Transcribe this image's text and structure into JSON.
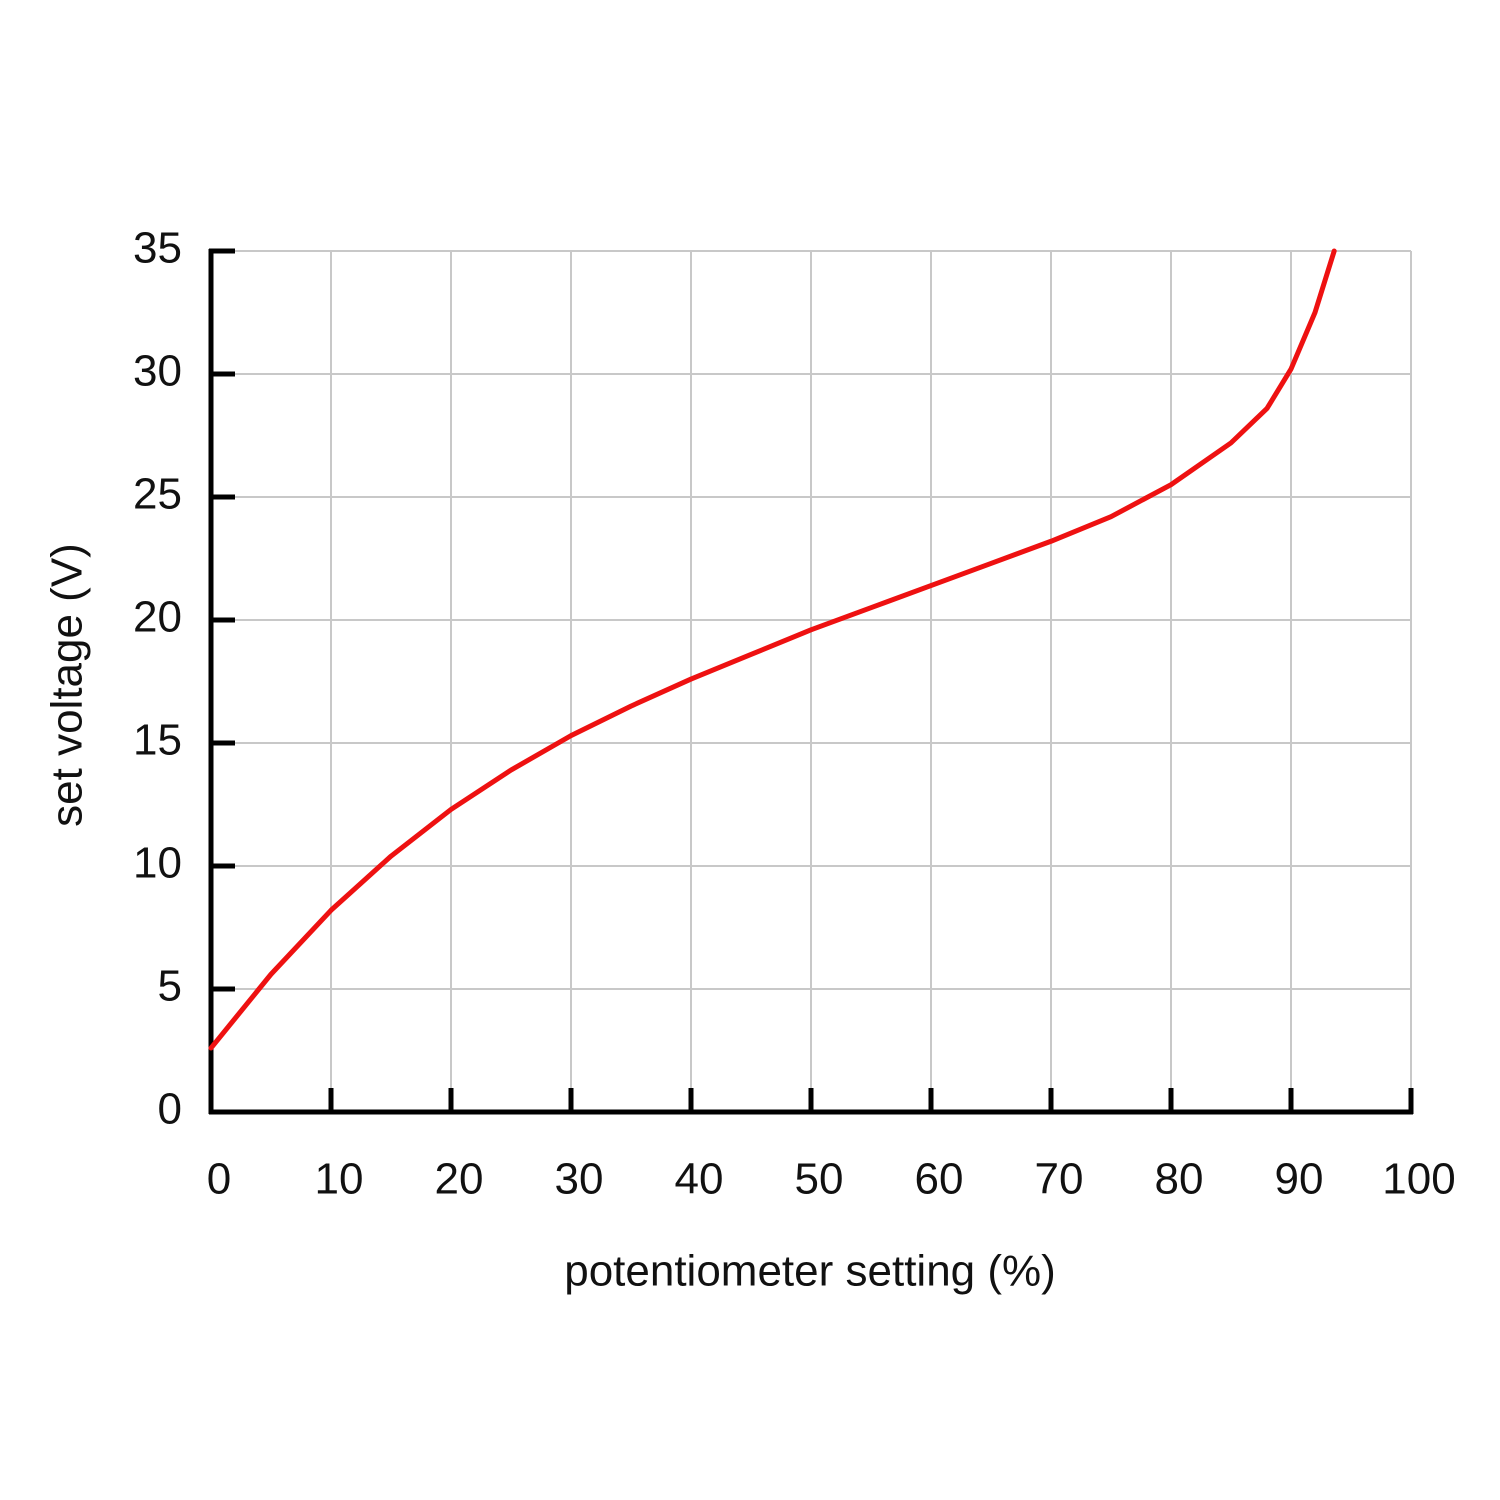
{
  "chart_data": {
    "type": "line",
    "xlabel": "potentiometer setting (%)",
    "ylabel": "set voltage (V)",
    "x": [
      0,
      5,
      10,
      15,
      20,
      25,
      30,
      35,
      40,
      45,
      50,
      55,
      60,
      65,
      70,
      75,
      80,
      85,
      88,
      90,
      92,
      93.6
    ],
    "series": [
      {
        "color": "#ee1111",
        "values": [
          2.6,
          5.6,
          8.2,
          10.4,
          12.3,
          13.9,
          15.3,
          16.5,
          17.6,
          18.6,
          19.6,
          20.5,
          21.4,
          22.3,
          23.2,
          24.2,
          25.5,
          27.2,
          28.6,
          30.2,
          32.5,
          35
        ]
      }
    ],
    "xlim": [
      0,
      100
    ],
    "xticks": [
      0,
      10,
      20,
      30,
      40,
      50,
      60,
      70,
      80,
      90,
      100
    ],
    "ylim": [
      0,
      35
    ],
    "yticks": [
      0,
      5,
      10,
      15,
      20,
      25,
      30,
      35
    ],
    "grid": true
  }
}
